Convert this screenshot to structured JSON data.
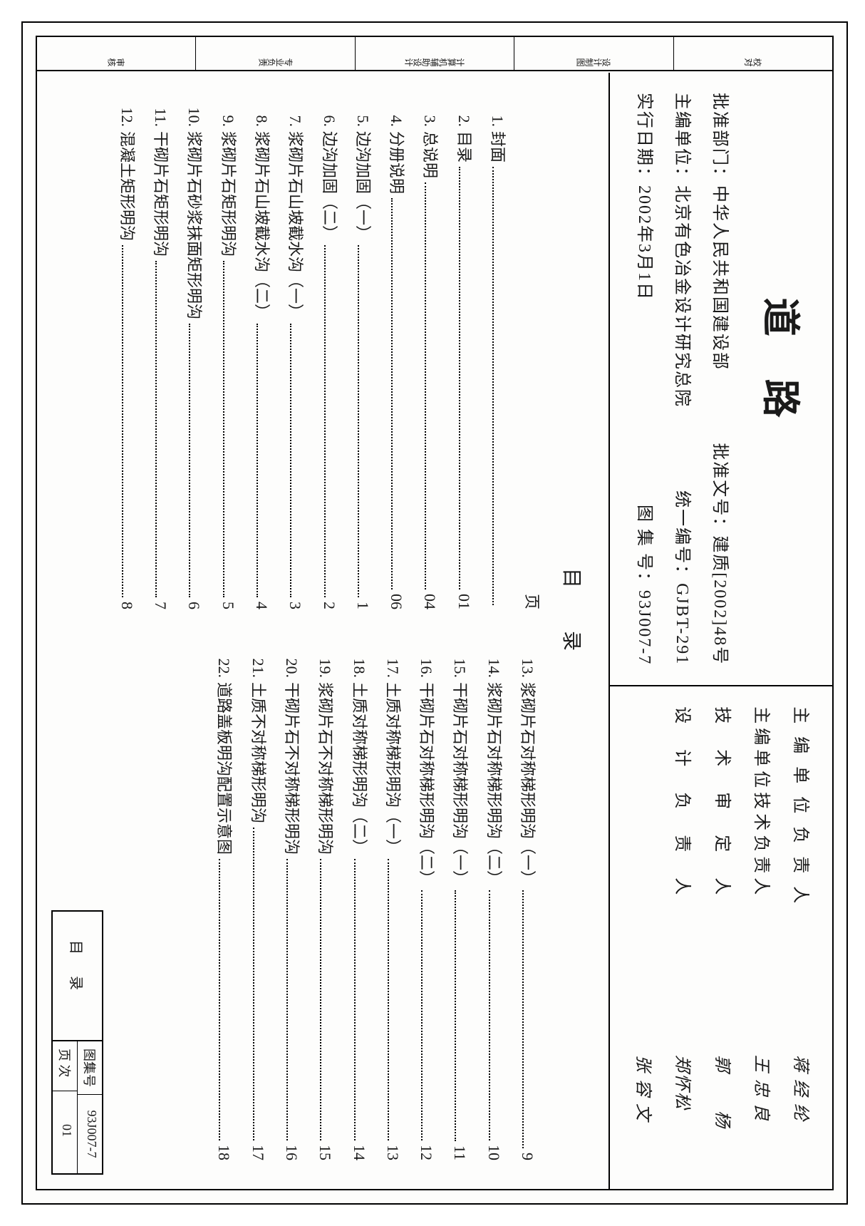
{
  "title": "道路",
  "side_stub": [
    "校对",
    "设计制图",
    "计算机辅助设计",
    "专业负责",
    "审核"
  ],
  "header_left": {
    "rows": [
      {
        "label": "批准部门：",
        "value": "中华人民共和国建设部",
        "right_label": "批准文号：",
        "right_value": "建质[2002]48号"
      },
      {
        "label": "主编单位：",
        "value": "北京有色冶金设计研究总院",
        "right_label": "统一编号：",
        "right_value": "GJBT-291"
      },
      {
        "label": "实行日期：",
        "value": "2002年3月1日",
        "right_label": "图 集 号：",
        "right_value": "93J007-7"
      }
    ]
  },
  "header_right": {
    "rows": [
      {
        "label": "主 编 单 位 负 责 人",
        "name": "蒋 经 纶"
      },
      {
        "label": "主编单位技术负责人",
        "name": "王 忠 良"
      },
      {
        "label": "技　术　审　定　人",
        "name": "郭　　杨"
      },
      {
        "label": "设　计　负　责　人",
        "name": "张 容 文"
      }
    ],
    "extra_name": "郑怀松"
  },
  "toc_title": "目录",
  "toc_header_page": "页",
  "toc_left": [
    {
      "n": "1.",
      "name": "封面",
      "page": ""
    },
    {
      "n": "2.",
      "name": "目录",
      "page": "01"
    },
    {
      "n": "3.",
      "name": "总说明",
      "page": "04"
    },
    {
      "n": "4.",
      "name": "分册说明",
      "page": "06"
    },
    {
      "n": "5.",
      "name": "边沟加固（一）",
      "page": "1"
    },
    {
      "n": "6.",
      "name": "边沟加固（二）",
      "page": "2"
    },
    {
      "n": "7.",
      "name": "浆砌片石山坡截水沟（一）",
      "page": "3"
    },
    {
      "n": "8.",
      "name": "浆砌片石山坡截水沟（二）",
      "page": "4"
    },
    {
      "n": "9.",
      "name": "浆砌片石矩形明沟",
      "page": "5"
    },
    {
      "n": "10.",
      "name": "浆砌片石砂浆抹面矩形明沟",
      "page": "6"
    },
    {
      "n": "11.",
      "name": "干砌片石矩形明沟",
      "page": "7"
    },
    {
      "n": "12.",
      "name": "混凝土矩形明沟",
      "page": "8"
    }
  ],
  "toc_right": [
    {
      "n": "13.",
      "name": "浆砌片石对称梯形明沟（一）",
      "page": "9"
    },
    {
      "n": "14.",
      "name": "浆砌片石对称梯形明沟（二）",
      "page": "10"
    },
    {
      "n": "15.",
      "name": "干砌片石对称梯形明沟（一）",
      "page": "11"
    },
    {
      "n": "16.",
      "name": "干砌片石对称梯形明沟（二）",
      "page": "12"
    },
    {
      "n": "17.",
      "name": "土质对称梯形明沟（一）",
      "page": "13"
    },
    {
      "n": "18.",
      "name": "土质对称梯形明沟（二）",
      "page": "14"
    },
    {
      "n": "19.",
      "name": "浆砌片石不对称梯形明沟",
      "page": "15"
    },
    {
      "n": "20.",
      "name": "干砌片石不对称梯形明沟",
      "page": "16"
    },
    {
      "n": "21.",
      "name": "土质不对称梯形明沟",
      "page": "17"
    },
    {
      "n": "22.",
      "name": "道路盖板明沟配置示意图",
      "page": "18"
    }
  ],
  "footer": {
    "title": "目录",
    "rows": [
      {
        "k": "图集号",
        "v": "93J007-7"
      },
      {
        "k": "页 次",
        "v": "01"
      }
    ]
  }
}
